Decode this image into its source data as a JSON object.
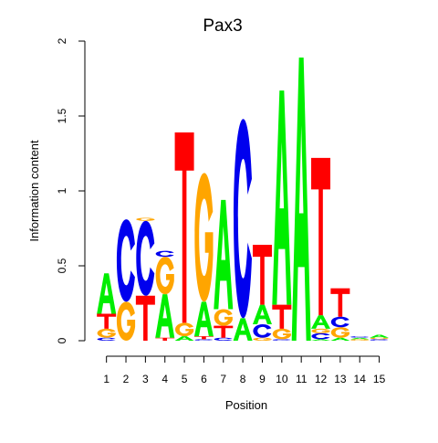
{
  "chart_data": {
    "type": "sequence_logo",
    "title": "Pax3",
    "xlabel": "Position",
    "ylabel": "Information content",
    "ylim": [
      0,
      2
    ],
    "y_ticks": [
      "0",
      "0.5",
      "1",
      "1.5",
      "2"
    ],
    "positions": [
      "1",
      "2",
      "3",
      "4",
      "5",
      "6",
      "7",
      "8",
      "9",
      "10",
      "11",
      "12",
      "13",
      "14",
      "15"
    ],
    "colors": {
      "A": "#00ee00",
      "C": "#0000ee",
      "G": "#ffa500",
      "T": "#ff0000"
    },
    "stacks": [
      [
        [
          "C",
          0.02
        ],
        [
          "G",
          0.06
        ],
        [
          "T",
          0.1
        ],
        [
          "A",
          0.27
        ]
      ],
      [
        [
          "G",
          0.26
        ],
        [
          "C",
          0.55
        ]
      ],
      [
        [
          "T",
          0.3
        ],
        [
          "C",
          0.5
        ],
        [
          "G",
          0.02
        ]
      ],
      [
        [
          "T",
          0.02
        ],
        [
          "A",
          0.29
        ],
        [
          "G",
          0.25
        ],
        [
          "C",
          0.04
        ]
      ],
      [
        [
          "A",
          0.03
        ],
        [
          "G",
          0.09
        ],
        [
          "T",
          1.27
        ]
      ],
      [
        [
          "C",
          0.01
        ],
        [
          "T",
          0.02
        ],
        [
          "A",
          0.23
        ],
        [
          "G",
          0.86
        ]
      ],
      [
        [
          "C",
          0.02
        ],
        [
          "T",
          0.08
        ],
        [
          "G",
          0.11
        ],
        [
          "A",
          0.73
        ]
      ],
      [
        [
          "A",
          0.15
        ],
        [
          "C",
          1.33
        ]
      ],
      [
        [
          "G",
          0.02
        ],
        [
          "C",
          0.09
        ],
        [
          "A",
          0.13
        ],
        [
          "T",
          0.4
        ]
      ],
      [
        [
          "C",
          0.01
        ],
        [
          "G",
          0.07
        ],
        [
          "T",
          0.16
        ],
        [
          "A",
          1.43
        ]
      ],
      [
        [
          "A",
          1.89
        ]
      ],
      [
        [
          "A",
          0.01
        ],
        [
          "C",
          0.04
        ],
        [
          "G",
          0.03
        ],
        [
          "A",
          0.09
        ],
        [
          "T",
          1.05
        ]
      ],
      [
        [
          "A",
          0.02
        ],
        [
          "G",
          0.07
        ],
        [
          "C",
          0.07
        ],
        [
          "T",
          0.19
        ]
      ],
      [
        [
          "G",
          0.01
        ],
        [
          "A",
          0.01
        ],
        [
          "C",
          0.01
        ]
      ],
      [
        [
          "C",
          0.01
        ],
        [
          "G",
          0.01
        ],
        [
          "A",
          0.02
        ]
      ]
    ]
  }
}
